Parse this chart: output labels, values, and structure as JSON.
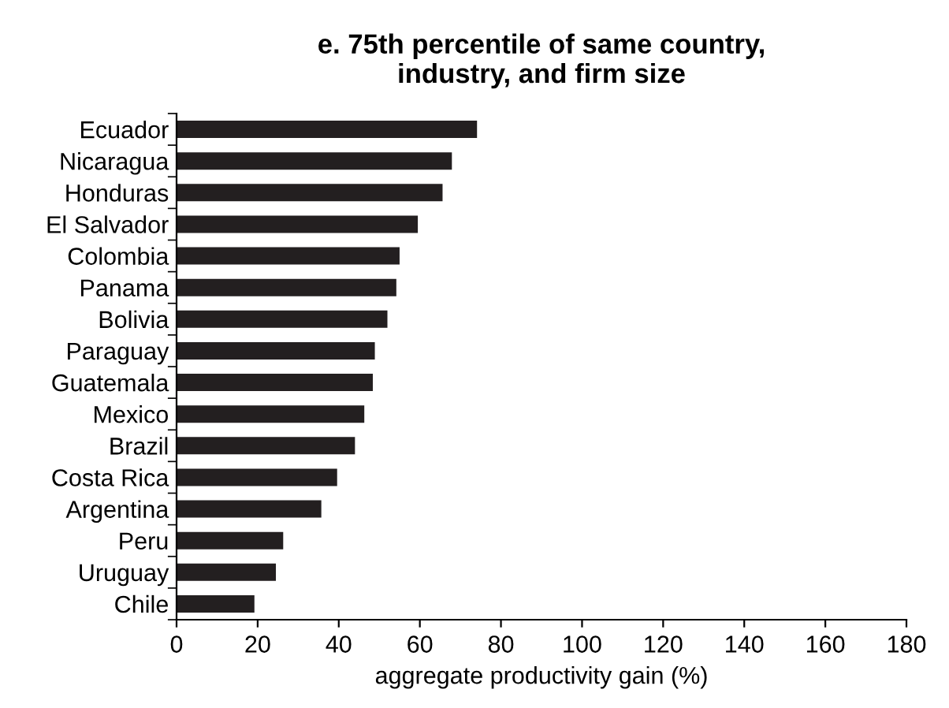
{
  "chart_data": {
    "type": "bar",
    "orientation": "horizontal",
    "title": "e. 75th percentile of same country,\nindustry, and firm size",
    "xlabel": "aggregate productivity gain (%)",
    "categories": [
      "Ecuador",
      "Nicaragua",
      "Honduras",
      "El Salvador",
      "Colombia",
      "Panama",
      "Bolivia",
      "Paraguay",
      "Guatemala",
      "Mexico",
      "Brazil",
      "Costa Rica",
      "Argentina",
      "Peru",
      "Uruguay",
      "Chile"
    ],
    "values": [
      74.1,
      67.9,
      65.6,
      59.5,
      55.0,
      54.2,
      52.0,
      48.9,
      48.4,
      46.3,
      44.0,
      39.6,
      35.7,
      26.3,
      24.5,
      19.2
    ],
    "color": "#231f20",
    "xlim": [
      0,
      180
    ],
    "xticks": [
      0,
      20,
      40,
      60,
      80,
      100,
      120,
      140,
      160,
      180
    ],
    "grid": false,
    "legend": false
  }
}
